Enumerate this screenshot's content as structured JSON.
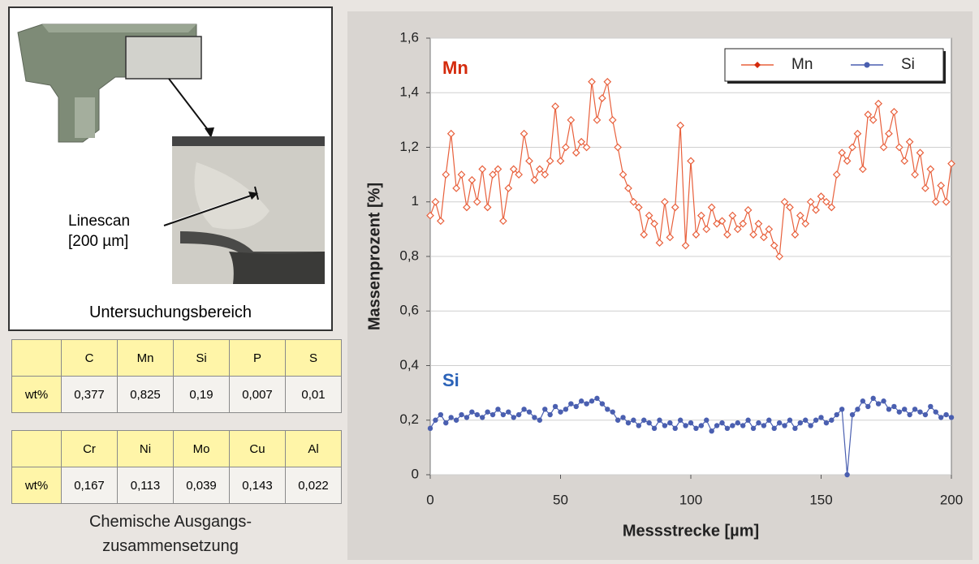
{
  "figure": {
    "linescan_label": [
      "Linescan",
      "[200 µm]"
    ],
    "region_caption": "Untersuchungsbereich",
    "tables": [
      {
        "columns": [
          "C",
          "Mn",
          "Si",
          "P",
          "S"
        ],
        "row_label": "wt%",
        "values": [
          "0,377",
          "0,825",
          "0,19",
          "0,007",
          "0,01"
        ]
      },
      {
        "columns": [
          "Cr",
          "Ni",
          "Mo",
          "Cu",
          "Al"
        ],
        "row_label": "wt%",
        "values": [
          "0,167",
          "0,113",
          "0,039",
          "0,143",
          "0,022"
        ]
      }
    ],
    "table_caption": [
      "Chemische Ausgangs-",
      "zusammensetzung"
    ]
  },
  "chart_data": {
    "type": "line",
    "x_label": "Messstrecke [µm]",
    "y_label": "Massenprozent [%]",
    "xlim": [
      0,
      200
    ],
    "xticks": [
      0,
      50,
      100,
      150,
      200
    ],
    "ylim": [
      0,
      1.6
    ],
    "yticks": [
      0,
      {
        "value": 0.2,
        "label": "0,2"
      },
      {
        "value": 0.4,
        "label": "0,4"
      },
      {
        "value": 0.6,
        "label": "0,6"
      },
      {
        "value": 0.8,
        "label": "0,8"
      },
      1,
      {
        "value": 1.2,
        "label": "1,2"
      },
      {
        "value": 1.4,
        "label": "1,4"
      },
      {
        "value": 1.6,
        "label": "1,6"
      }
    ],
    "grid": true,
    "legend": "upper right",
    "annotations": [
      {
        "text": "Mn",
        "color": "#d42a0c"
      },
      {
        "text": "Si",
        "color": "#2a62b8"
      }
    ],
    "x": [
      0,
      2,
      4,
      6,
      8,
      10,
      12,
      14,
      16,
      18,
      20,
      22,
      24,
      26,
      28,
      30,
      32,
      34,
      36,
      38,
      40,
      42,
      44,
      46,
      48,
      50,
      52,
      54,
      56,
      58,
      60,
      62,
      64,
      66,
      68,
      70,
      72,
      74,
      76,
      78,
      80,
      82,
      84,
      86,
      88,
      90,
      92,
      94,
      96,
      98,
      100,
      102,
      104,
      106,
      108,
      110,
      112,
      114,
      116,
      118,
      120,
      122,
      124,
      126,
      128,
      130,
      132,
      134,
      136,
      138,
      140,
      142,
      144,
      146,
      148,
      150,
      152,
      154,
      156,
      158,
      160,
      162,
      164,
      166,
      168,
      170,
      172,
      174,
      176,
      178,
      180,
      182,
      184,
      186,
      188,
      190,
      192,
      194,
      196,
      198,
      200
    ],
    "series": [
      {
        "name": "Mn",
        "color": "#e8603c",
        "values": [
          0.95,
          1.0,
          0.93,
          1.1,
          1.25,
          1.05,
          1.1,
          0.98,
          1.08,
          1.0,
          1.12,
          0.98,
          1.1,
          1.12,
          0.93,
          1.05,
          1.12,
          1.1,
          1.25,
          1.15,
          1.08,
          1.12,
          1.1,
          1.15,
          1.35,
          1.15,
          1.2,
          1.3,
          1.18,
          1.22,
          1.2,
          1.44,
          1.3,
          1.38,
          1.44,
          1.3,
          1.2,
          1.1,
          1.05,
          1.0,
          0.98,
          0.88,
          0.95,
          0.92,
          0.85,
          1.0,
          0.87,
          0.98,
          1.28,
          0.84,
          1.15,
          0.88,
          0.95,
          0.9,
          0.98,
          0.92,
          0.93,
          0.88,
          0.95,
          0.9,
          0.92,
          0.97,
          0.88,
          0.92,
          0.87,
          0.9,
          0.84,
          0.8,
          1.0,
          0.98,
          0.88,
          0.95,
          0.92,
          1.0,
          0.97,
          1.02,
          1.0,
          0.98,
          1.1,
          1.18,
          1.15,
          1.2,
          1.25,
          1.12,
          1.32,
          1.3,
          1.36,
          1.2,
          1.25,
          1.33,
          1.2,
          1.15,
          1.22,
          1.1,
          1.18,
          1.05,
          1.12,
          1.0,
          1.06,
          1.0,
          1.14
        ]
      },
      {
        "name": "Si",
        "color": "#4a5fb0",
        "values": [
          0.17,
          0.2,
          0.22,
          0.19,
          0.21,
          0.2,
          0.22,
          0.21,
          0.23,
          0.22,
          0.21,
          0.23,
          0.22,
          0.24,
          0.22,
          0.23,
          0.21,
          0.22,
          0.24,
          0.23,
          0.21,
          0.2,
          0.24,
          0.22,
          0.25,
          0.23,
          0.24,
          0.26,
          0.25,
          0.27,
          0.26,
          0.27,
          0.28,
          0.26,
          0.24,
          0.23,
          0.2,
          0.21,
          0.19,
          0.2,
          0.18,
          0.2,
          0.19,
          0.17,
          0.2,
          0.18,
          0.19,
          0.17,
          0.2,
          0.18,
          0.19,
          0.17,
          0.18,
          0.2,
          0.16,
          0.18,
          0.19,
          0.17,
          0.18,
          0.19,
          0.18,
          0.2,
          0.17,
          0.19,
          0.18,
          0.2,
          0.17,
          0.19,
          0.18,
          0.2,
          0.17,
          0.19,
          0.2,
          0.18,
          0.2,
          0.21,
          0.19,
          0.2,
          0.22,
          0.24,
          0.0,
          0.22,
          0.24,
          0.27,
          0.25,
          0.28,
          0.26,
          0.27,
          0.24,
          0.25,
          0.23,
          0.24,
          0.22,
          0.24,
          0.23,
          0.22,
          0.25,
          0.23,
          0.21,
          0.22,
          0.21
        ]
      }
    ]
  }
}
